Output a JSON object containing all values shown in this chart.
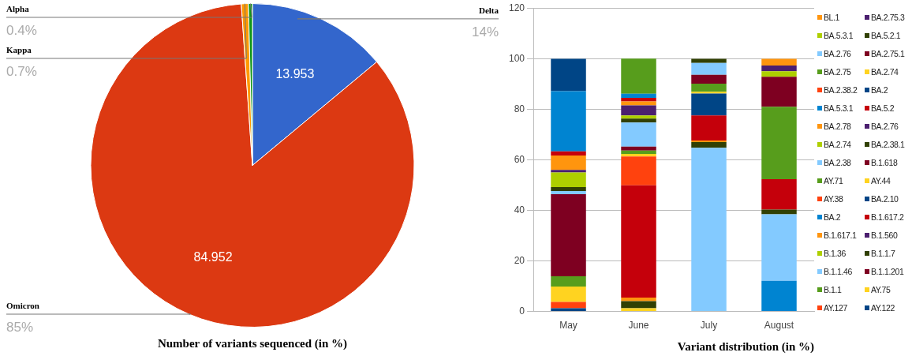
{
  "chart_data": [
    {
      "type": "pie",
      "title": "Number of variants sequenced (in %)",
      "categories": [
        "Delta",
        "Omicron",
        "Kappa",
        "Alpha"
      ],
      "values": [
        13.953,
        84.952,
        0.7,
        0.4
      ],
      "colors": [
        "#3366cc",
        "#dc3912",
        "#ff9900",
        "#109618"
      ],
      "value_labels": [
        "13.953",
        "84.952",
        null,
        null
      ],
      "annotations": [
        "14%",
        "85%",
        "0.7%",
        "0.4%"
      ]
    },
    {
      "type": "bar",
      "title": "Variant distribution (in %)",
      "categories": [
        "May",
        "June",
        "July",
        "August"
      ],
      "stacked": true,
      "ylim": [
        0,
        120
      ],
      "yticks": [
        0,
        20,
        40,
        60,
        80,
        100,
        120
      ],
      "grid": "y",
      "legend": "right",
      "series": [
        {
          "name": "AY.122",
          "color": "#004586",
          "values": [
            1.3,
            null,
            null,
            null
          ]
        },
        {
          "name": "AY.127",
          "color": "#ff420e",
          "values": [
            2.5,
            null,
            null,
            null
          ]
        },
        {
          "name": "AY.75",
          "color": "#ffd320",
          "values": [
            6.1,
            1.3,
            null,
            null
          ]
        },
        {
          "name": "B.1.1",
          "color": "#579d1c",
          "values": [
            4,
            null,
            null,
            null
          ]
        },
        {
          "name": "B.1.1.201",
          "color": "#7e0021",
          "values": [
            32.5,
            null,
            null,
            null
          ]
        },
        {
          "name": "B.1.1.46",
          "color": "#83caff",
          "values": [
            1.2,
            null,
            null,
            null
          ]
        },
        {
          "name": "B.1.1.7",
          "color": "#314004",
          "values": [
            1.6,
            2.8,
            null,
            null
          ]
        },
        {
          "name": "B.1.36",
          "color": "#aecf00",
          "values": [
            5.8,
            null,
            null,
            null
          ]
        },
        {
          "name": "B.1.560",
          "color": "#4b1f6f",
          "values": [
            1.0,
            null,
            null,
            null
          ]
        },
        {
          "name": "B.1.617.1",
          "color": "#ff950e",
          "values": [
            5.7,
            1.4,
            null,
            null
          ]
        },
        {
          "name": "B.1.617.2",
          "color": "#c5000b",
          "values": [
            1.6,
            44.4,
            null,
            null
          ]
        },
        {
          "name": "BA.2",
          "color": "#0084d1",
          "values": [
            23.8,
            null,
            null,
            12.1
          ]
        },
        {
          "name": "BA.2.10",
          "color": "#004586",
          "values": [
            12.8,
            null,
            null,
            null
          ]
        },
        {
          "name": "AY.38",
          "color": "#ff420e",
          "values": [
            null,
            11.4,
            null,
            null
          ]
        },
        {
          "name": "AY.44",
          "color": "#ffd320",
          "values": [
            null,
            1.0,
            null,
            null
          ]
        },
        {
          "name": "AY.71",
          "color": "#579d1c",
          "values": [
            null,
            1.3,
            null,
            null
          ]
        },
        {
          "name": "B.1.618",
          "color": "#7e0021",
          "values": [
            null,
            1.6,
            null,
            null
          ]
        },
        {
          "name": "BA.2.38",
          "color": "#83caff",
          "values": [
            null,
            9.5,
            64.7,
            26.3
          ]
        },
        {
          "name": "BA.2.38.1",
          "color": "#314004",
          "values": [
            null,
            1.6,
            2.3,
            1.9
          ]
        },
        {
          "name": "BA.2.74",
          "color": "#aecf00",
          "values": [
            null,
            1.2,
            null,
            null
          ]
        },
        {
          "name": "BA.2.76",
          "color": "#4b1f6f",
          "values": [
            null,
            4.0,
            null,
            null
          ]
        },
        {
          "name": "BA.2.78",
          "color": "#ff950e",
          "values": [
            null,
            1.6,
            0.6,
            null
          ]
        },
        {
          "name": "BA.5.2",
          "color": "#c5000b",
          "values": [
            null,
            1.4,
            9.9,
            12
          ]
        },
        {
          "name": "BA.5.3.1",
          "color": "#0084d1",
          "values": [
            null,
            1.6,
            null,
            null
          ]
        },
        {
          "name": "BA.2",
          "color": "#004586",
          "values": [
            null,
            null,
            8.7,
            null
          ]
        },
        {
          "name": "BA.2.38.2",
          "color": "#ff420e",
          "values": [
            null,
            null,
            null,
            null
          ]
        },
        {
          "name": "BA.2.74",
          "color": "#ffd320",
          "values": [
            null,
            null,
            0.7,
            null
          ]
        },
        {
          "name": "BA.2.75",
          "color": "#579d1c",
          "values": [
            null,
            13.9,
            3.2,
            28.7
          ]
        },
        {
          "name": "BA.2.75.1",
          "color": "#7e0021",
          "values": [
            null,
            null,
            3.5,
            11.8
          ]
        },
        {
          "name": "BA.2.76",
          "color": "#83caff",
          "values": [
            null,
            null,
            4.7,
            null
          ]
        },
        {
          "name": "BA.5.2.1",
          "color": "#314004",
          "values": [
            null,
            null,
            1.6,
            null
          ]
        },
        {
          "name": "BA.5.3.1",
          "color": "#aecf00",
          "values": [
            null,
            null,
            null,
            2.2
          ]
        },
        {
          "name": "BA.2.75.3",
          "color": "#4b1f6f",
          "values": [
            null,
            null,
            null,
            2.3
          ]
        },
        {
          "name": "BL.1",
          "color": "#ff950e",
          "values": [
            null,
            null,
            null,
            2.6
          ]
        }
      ]
    }
  ]
}
